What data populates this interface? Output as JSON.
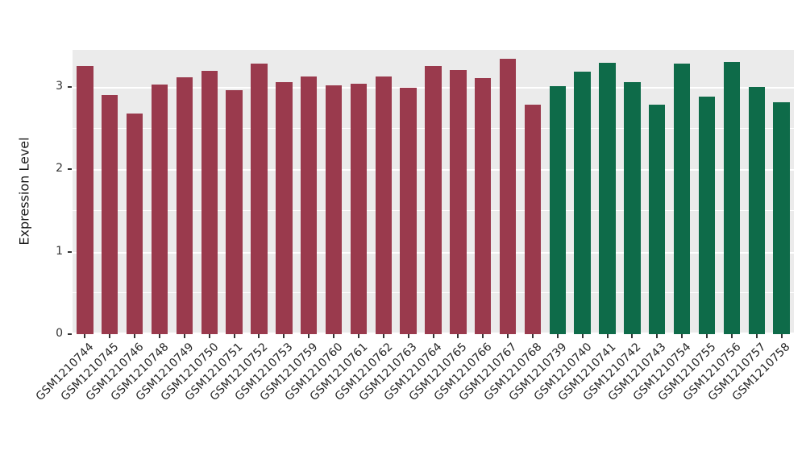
{
  "chart_data": {
    "type": "bar",
    "title": "",
    "xlabel": "",
    "ylabel": "Expression Level",
    "ylim": [
      0,
      3.45
    ],
    "yticks": [
      0,
      1,
      2,
      3
    ],
    "grid_minor": [
      0.5,
      1.5,
      2.5
    ],
    "grid": true,
    "legend": "none",
    "panel_background": "#EBEBEB",
    "bar_width_fraction": 0.66,
    "colors": {
      "red": "#9A3A4D",
      "green": "#0E6B49"
    },
    "categories": [
      "GSM1210744",
      "GSM1210745",
      "GSM1210746",
      "GSM1210748",
      "GSM1210749",
      "GSM1210750",
      "GSM1210751",
      "GSM1210752",
      "GSM1210753",
      "GSM1210759",
      "GSM1210760",
      "GSM1210761",
      "GSM1210762",
      "GSM1210763",
      "GSM1210764",
      "GSM1210765",
      "GSM1210766",
      "GSM1210767",
      "GSM1210768",
      "GSM1210739",
      "GSM1210740",
      "GSM1210741",
      "GSM1210742",
      "GSM1210743",
      "GSM1210754",
      "GSM1210755",
      "GSM1210756",
      "GSM1210757",
      "GSM1210758"
    ],
    "values": [
      3.25,
      2.9,
      2.68,
      3.03,
      3.12,
      3.2,
      2.96,
      3.28,
      3.06,
      3.13,
      3.02,
      3.04,
      3.13,
      2.99,
      3.25,
      3.21,
      3.11,
      3.34,
      2.79,
      3.01,
      3.19,
      3.29,
      3.06,
      2.79,
      3.28,
      2.88,
      3.3,
      3.0,
      2.81
    ],
    "group": [
      "red",
      "red",
      "red",
      "red",
      "red",
      "red",
      "red",
      "red",
      "red",
      "red",
      "red",
      "red",
      "red",
      "red",
      "red",
      "red",
      "red",
      "red",
      "red",
      "green",
      "green",
      "green",
      "green",
      "green",
      "green",
      "green",
      "green",
      "green",
      "green"
    ]
  }
}
